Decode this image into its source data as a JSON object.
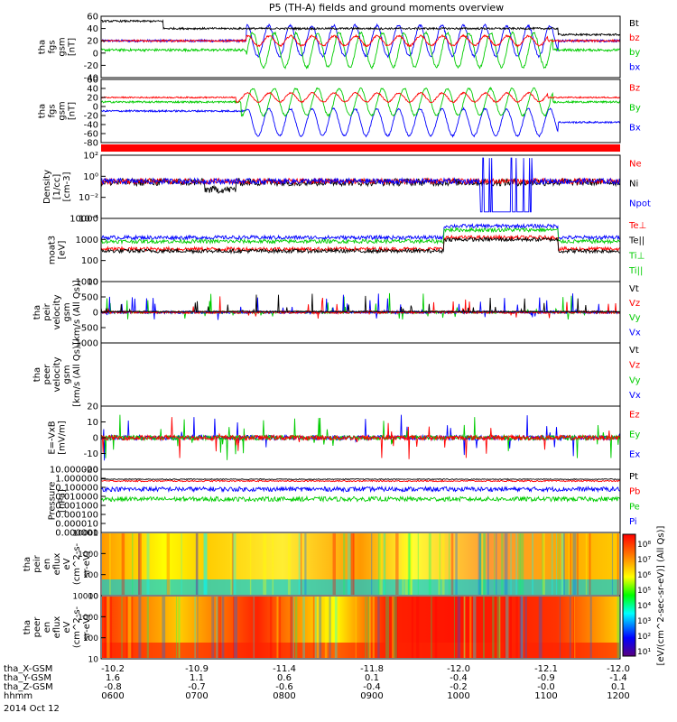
{
  "title": "P5 (TH-A) fields and ground moments overview",
  "colors": {
    "black": "#000000",
    "red": "#ff0000",
    "green": "#00cc00",
    "blue": "#0000ff"
  },
  "chart_data": [
    {
      "type": "line",
      "ylabel_lines": [
        "tha",
        "fgs",
        "gsm",
        "[nT]"
      ],
      "ylim": [
        -40,
        60
      ],
      "yticks": [
        "-40",
        "-20",
        "0",
        "20",
        "40",
        "60"
      ],
      "yticks_values": [
        -40,
        -20,
        0,
        20,
        40,
        60
      ],
      "legend": [
        {
          "text": "Bt",
          "color": "#000000"
        },
        {
          "text": "bz",
          "color": "#ff0000"
        },
        {
          "text": "by",
          "color": "#00cc00"
        },
        {
          "text": "bx",
          "color": "#0000ff"
        }
      ]
    },
    {
      "type": "line",
      "ylabel_lines": [
        "tha",
        "fgs",
        "gsm",
        "[nT]"
      ],
      "ylim": [
        -80,
        60
      ],
      "yticks": [
        "-80",
        "-60",
        "-40",
        "-20",
        "0",
        "20",
        "40",
        "60"
      ],
      "yticks_values": [
        -80,
        -60,
        -40,
        -20,
        0,
        20,
        40,
        60
      ],
      "legend": [
        {
          "text": "Bz",
          "color": "#ff0000"
        },
        {
          "text": "By",
          "color": "#00cc00"
        },
        {
          "text": "Bx",
          "color": "#0000ff"
        }
      ]
    },
    {
      "type": "line",
      "ylabel_lines": [
        "Density",
        "[1/cc]",
        "[cm-3]"
      ],
      "log": true,
      "yticks": [
        "10⁻⁴",
        "10⁻²",
        "10⁰",
        "10²"
      ],
      "yticks_values": [
        -4,
        -2,
        0,
        2
      ],
      "legend": [
        {
          "text": "Ne",
          "color": "#ff0000"
        },
        {
          "text": "Ni",
          "color": "#000000"
        },
        {
          "text": "Npot",
          "color": "#0000ff"
        }
      ]
    },
    {
      "type": "line",
      "ylabel_lines": [
        "moat3",
        "[eV]"
      ],
      "log": true,
      "yticks": [
        "10",
        "100",
        "1000",
        "10000"
      ],
      "yticks_values": [
        1,
        2,
        3,
        4
      ],
      "legend": [
        {
          "text": "Te⊥",
          "color": "#ff0000"
        },
        {
          "text": "Te||",
          "color": "#000000"
        },
        {
          "text": "Ti⊥",
          "color": "#00cc00"
        },
        {
          "text": "Ti||",
          "color": "#00cc00"
        }
      ]
    },
    {
      "type": "line",
      "ylabel_lines": [
        "tha",
        "peir",
        "velocity",
        "gsm",
        "[km/s (All Qs)]"
      ],
      "ylim": [
        -1000,
        1000
      ],
      "yticks": [
        "-1000",
        "-500",
        "0",
        "500",
        "1000"
      ],
      "yticks_values": [
        -1000,
        -500,
        0,
        500,
        1000
      ],
      "legend": [
        {
          "text": "Vt",
          "color": "#000000"
        },
        {
          "text": "Vz",
          "color": "#ff0000"
        },
        {
          "text": "Vy",
          "color": "#00cc00"
        },
        {
          "text": "Vx",
          "color": "#0000ff"
        }
      ]
    },
    {
      "type": "line",
      "ylabel_lines": [
        "tha",
        "peer",
        "velocity",
        "gsm",
        "[km/s (All Qs)]"
      ],
      "yticks": [],
      "legend": [
        {
          "text": "Vt",
          "color": "#000000"
        },
        {
          "text": "Vz",
          "color": "#ff0000"
        },
        {
          "text": "Vy",
          "color": "#00cc00"
        },
        {
          "text": "Vx",
          "color": "#0000ff"
        }
      ]
    },
    {
      "type": "line",
      "ylabel_lines": [
        "E=-VxB",
        "[mV/m]"
      ],
      "ylim": [
        -20,
        20
      ],
      "yticks": [
        "-20",
        "-10",
        "0",
        "10",
        "20"
      ],
      "yticks_values": [
        -20,
        -10,
        0,
        10,
        20
      ],
      "legend": [
        {
          "text": "Ez",
          "color": "#ff0000"
        },
        {
          "text": "Ey",
          "color": "#00cc00"
        },
        {
          "text": "Ex",
          "color": "#0000ff"
        }
      ]
    },
    {
      "type": "line",
      "ylabel_lines": [
        "Pressure",
        "[nPa]"
      ],
      "log": true,
      "yticks": [
        "0.000001",
        "0.000010",
        "0.000100",
        "0.001000",
        "0.010000",
        "0.100000",
        "1.000000",
        "10.000000"
      ],
      "yticks_values": [
        -6,
        -5,
        -4,
        -3,
        -2,
        -1,
        0,
        1
      ],
      "legend": [
        {
          "text": "Pt",
          "color": "#000000"
        },
        {
          "text": "Pb",
          "color": "#ff0000"
        },
        {
          "text": "Pe",
          "color": "#00cc00"
        },
        {
          "text": "Pi",
          "color": "#0000ff"
        }
      ]
    },
    {
      "type": "heatmap",
      "ylabel_lines": [
        "tha",
        "peir",
        "en",
        "eflux",
        "eV",
        "(cm^2-s-",
        "sr-eV)"
      ],
      "log": true,
      "yticks": [
        "10",
        "100",
        "1000",
        "10000"
      ],
      "yticks_values": [
        1,
        2,
        3,
        4
      ]
    },
    {
      "type": "heatmap",
      "ylabel_lines": [
        "tha",
        "peer",
        "en",
        "eflux",
        "eV",
        "(cm^2-s-",
        "sr-eV)"
      ],
      "log": true,
      "yticks": [
        "10",
        "100",
        "1000",
        "10000"
      ],
      "yticks_values": [
        1,
        2,
        3,
        4
      ]
    }
  ],
  "colorbar": {
    "label": "[eV/(cm^2-sec-sr-eV)] (All Qs)]",
    "ticks": [
      "10¹",
      "10²",
      "10³",
      "10⁴",
      "10⁵",
      "10⁶",
      "10⁷",
      "10⁸"
    ]
  },
  "xaxis": {
    "rows": [
      {
        "label": "tha_X-GSM",
        "values": [
          "-10.2",
          "-10.9",
          "-11.4",
          "-11.8",
          "-12.0",
          "-12.1",
          "-12.0"
        ]
      },
      {
        "label": "tha_Y-GSM",
        "values": [
          "1.6",
          "1.1",
          "0.6",
          "0.1",
          "-0.4",
          "-0.9",
          "-1.4"
        ]
      },
      {
        "label": "tha_Z-GSM",
        "values": [
          "-0.8",
          "-0.7",
          "-0.6",
          "-0.4",
          "-0.2",
          "-0.0",
          "0.1"
        ]
      },
      {
        "label": "hhmm",
        "values": [
          "0600",
          "0700",
          "0800",
          "0900",
          "1000",
          "1100",
          "1200"
        ]
      }
    ],
    "date": "2014 Oct 12"
  }
}
